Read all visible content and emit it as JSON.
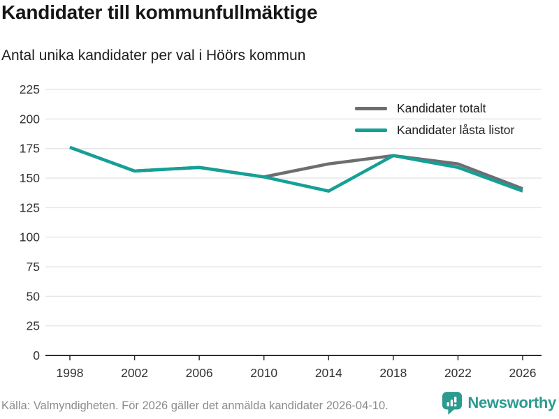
{
  "header": {
    "title": "Kandidater till kommunfullmäktige",
    "subtitle": "Antal unika kandidater per val i Höörs kommun"
  },
  "chart_data": {
    "type": "line",
    "title": "Kandidater till kommunfullmäktige",
    "subtitle": "Antal unika kandidater per val i Höörs kommun",
    "categories": [
      "1998",
      "2002",
      "2006",
      "2010",
      "2014",
      "2018",
      "2022",
      "2026"
    ],
    "series": [
      {
        "name": "Kandidater totalt",
        "color": "#6e6e72",
        "values": [
          176,
          156,
          159,
          151,
          162,
          169,
          162,
          141
        ]
      },
      {
        "name": "Kandidater låsta listor",
        "color": "#14a096",
        "values": [
          176,
          156,
          159,
          151,
          139,
          169,
          159,
          139
        ]
      }
    ],
    "xlabel": "",
    "ylabel": "",
    "ylim": [
      0,
      225
    ],
    "ytick_step": 25,
    "yticks": [
      0,
      25,
      50,
      75,
      100,
      125,
      150,
      175,
      200,
      225
    ],
    "grid": true,
    "legend_position": "top-right",
    "gridline_color": "#e7e7e7",
    "axis_color": "#2e2e2e",
    "tick_label_color": "#333333"
  },
  "footer": {
    "source": "Källa: Valmyndigheten. För 2026 gäller det anmälda kandidater 2026-04-10.",
    "brand": "Newsworthy",
    "brand_color": "#2b9a90"
  }
}
